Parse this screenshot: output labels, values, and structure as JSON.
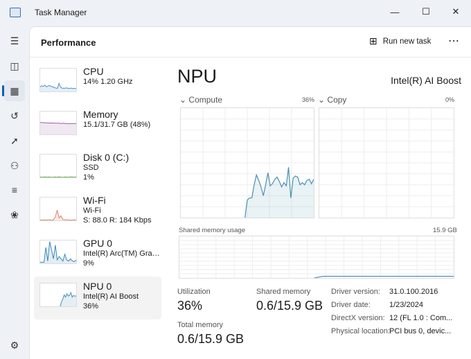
{
  "window": {
    "title": "Task Manager"
  },
  "header": {
    "title": "Performance",
    "run_new_task": "Run new task"
  },
  "nav": [
    "menu-icon",
    "processes-icon",
    "performance-icon",
    "app-history-icon",
    "startup-apps-icon",
    "users-icon",
    "details-icon",
    "services-icon",
    "settings-icon"
  ],
  "list": [
    {
      "name": "CPU",
      "line1": "14%  1.20 GHz",
      "line2": "",
      "color": "#4a90c8",
      "series": [
        20,
        25,
        22,
        28,
        20,
        24,
        26,
        22,
        20,
        18,
        15,
        14,
        35,
        20,
        14,
        15,
        14,
        16,
        13,
        14,
        15,
        12,
        14,
        13
      ]
    },
    {
      "name": "Memory",
      "line1": "15.1/31.7 GB (48%)",
      "line2": "",
      "color": "#9b5fa6",
      "series": [
        52,
        52,
        51,
        51,
        50,
        50,
        50,
        49,
        49,
        49,
        48,
        49,
        48,
        48,
        48,
        48,
        48,
        48
      ]
    },
    {
      "name": "Disk 0 (C:)",
      "line1": "SSD",
      "line2": "1%",
      "color": "#6aa84f",
      "series": [
        2,
        1,
        3,
        1,
        2,
        1,
        1,
        2,
        1,
        3,
        1,
        1,
        2,
        1,
        2,
        3,
        1,
        2
      ]
    },
    {
      "name": "Wi-Fi",
      "line1": "Wi-Fi",
      "line2": "S: 88.0  R: 184 Kbps",
      "color": "#d9826b",
      "series": [
        2,
        1,
        2,
        1,
        2,
        3,
        1,
        2,
        15,
        45,
        10,
        20,
        4,
        2,
        3,
        2,
        1,
        2,
        2,
        1
      ]
    },
    {
      "name": "GPU 0",
      "line1": "Intel(R) Arc(TM) Graph...",
      "line2": "9%",
      "color": "#3a86b8",
      "series": [
        5,
        5,
        5,
        70,
        10,
        95,
        60,
        20,
        80,
        15,
        30,
        20,
        10,
        40,
        15,
        10,
        20,
        10,
        8,
        15
      ]
    },
    {
      "name": "NPU 0",
      "line1": "Intel(R) AI Boost",
      "line2": "36%",
      "color": "#4a90b0",
      "series": [
        0,
        0,
        0,
        0,
        0,
        0,
        0,
        0,
        0,
        0,
        0,
        0,
        0,
        0,
        0,
        0,
        20,
        33,
        50,
        40,
        55,
        45,
        48,
        60,
        40,
        48,
        44,
        46
      ]
    }
  ],
  "main": {
    "title": "NPU",
    "device": "Intel(R) AI Boost",
    "compute": {
      "label": "Compute",
      "percent": "36%",
      "series": [
        0,
        0,
        0,
        0,
        0,
        0,
        0,
        0,
        0,
        0,
        0,
        0,
        0,
        0,
        0,
        0,
        0,
        0,
        0,
        0,
        0,
        0,
        0,
        0,
        0,
        0,
        0,
        0,
        0,
        16,
        18,
        18,
        30,
        39,
        34,
        28,
        20,
        30,
        41,
        29,
        31,
        35,
        37,
        33,
        28,
        32,
        29,
        46,
        18,
        36,
        38,
        37,
        30,
        32,
        30,
        34,
        35,
        31,
        35
      ]
    },
    "copy": {
      "label": "Copy",
      "percent": "0%"
    },
    "shared": {
      "label": "Shared memory usage",
      "max": "15.9 GB",
      "series": [
        0,
        0,
        0,
        0,
        0,
        0,
        0,
        0,
        0,
        0,
        0,
        0,
        0,
        0,
        0,
        0,
        0,
        0,
        0,
        0,
        0,
        0,
        0,
        0,
        0,
        0,
        0,
        0,
        0,
        0,
        2,
        4,
        4,
        4,
        4,
        4,
        4,
        4,
        4,
        4,
        4,
        4,
        4,
        4,
        4,
        4,
        4,
        4,
        4,
        4,
        4,
        4,
        4,
        4,
        4,
        4,
        4,
        4,
        4,
        4
      ]
    },
    "stats": {
      "utilization_label": "Utilization",
      "utilization": "36%",
      "shared_label": "Shared memory",
      "shared": "0.6/15.9 GB",
      "total_label": "Total memory",
      "total": "0.6/15.9 GB"
    },
    "details": [
      {
        "k": "Driver version:",
        "v": "31.0.100.2016"
      },
      {
        "k": "Driver date:",
        "v": "1/23/2024"
      },
      {
        "k": "DirectX version:",
        "v": "12 (FL 1.0 : Com..."
      },
      {
        "k": "Physical location:",
        "v": "PCI bus 0, devic..."
      }
    ]
  }
}
